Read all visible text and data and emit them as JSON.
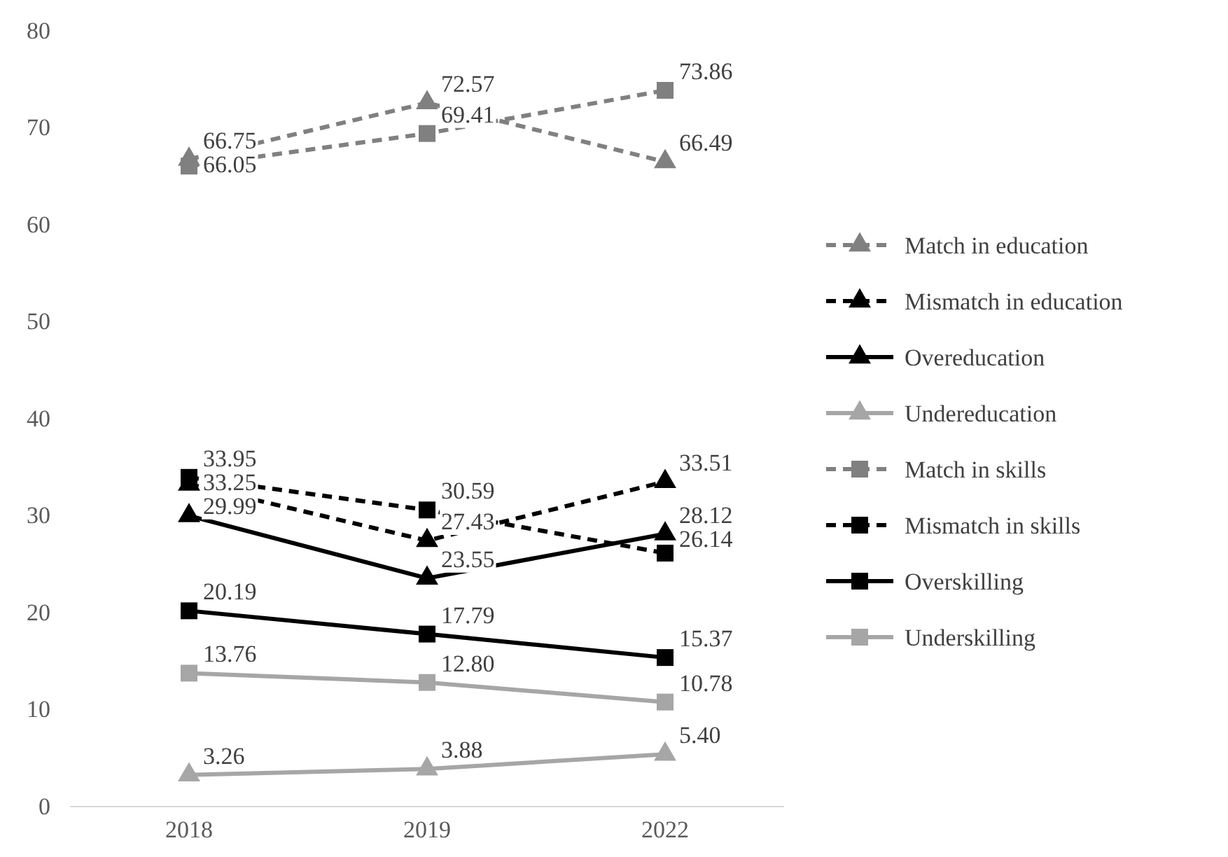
{
  "chart_data": {
    "type": "line",
    "categories": [
      "2018",
      "2019",
      "2022"
    ],
    "ylim": [
      0,
      80
    ],
    "yticks": [
      0,
      10,
      20,
      30,
      40,
      50,
      60,
      70,
      80
    ],
    "grid": false,
    "legend": "right",
    "series": [
      {
        "name": "Match in education",
        "color": "#808080",
        "line_style": "dashed",
        "marker": "triangle",
        "values": [
          66.75,
          72.57,
          66.49
        ],
        "value_labels": [
          "66.75",
          "72.57",
          "66.49"
        ]
      },
      {
        "name": "Mismatch in education",
        "color": "#000000",
        "line_style": "dashed",
        "marker": "triangle",
        "values": [
          33.25,
          27.43,
          33.51
        ],
        "value_labels": [
          "33.25",
          "27.43",
          "33.51"
        ]
      },
      {
        "name": "Overeducation",
        "color": "#000000",
        "line_style": "solid",
        "marker": "triangle",
        "values": [
          29.99,
          23.55,
          28.12
        ],
        "value_labels": [
          "29.99",
          "23.55",
          "28.12"
        ]
      },
      {
        "name": "Undereducation",
        "color": "#a6a6a6",
        "line_style": "solid",
        "marker": "triangle",
        "values": [
          3.26,
          3.88,
          5.4
        ],
        "value_labels": [
          "3.26",
          "3.88",
          "5.40"
        ]
      },
      {
        "name": "Match in skills",
        "color": "#808080",
        "line_style": "dashed",
        "marker": "square",
        "values": [
          66.05,
          69.41,
          73.86
        ],
        "value_labels": [
          "66.05",
          "69.41",
          "73.86"
        ]
      },
      {
        "name": "Mismatch in skills",
        "color": "#000000",
        "line_style": "dashed",
        "marker": "square",
        "values": [
          33.95,
          30.59,
          26.14
        ],
        "value_labels": [
          "33.95",
          "30.59",
          "26.14"
        ]
      },
      {
        "name": "Overskilling",
        "color": "#000000",
        "line_style": "solid",
        "marker": "square",
        "values": [
          20.19,
          17.79,
          15.37
        ],
        "value_labels": [
          "20.19",
          "17.79",
          "15.37"
        ]
      },
      {
        "name": "Underskilling",
        "color": "#a6a6a6",
        "line_style": "solid",
        "marker": "square",
        "values": [
          13.76,
          12.8,
          10.78
        ],
        "value_labels": [
          "13.76",
          "12.80",
          "10.78"
        ]
      }
    ]
  }
}
